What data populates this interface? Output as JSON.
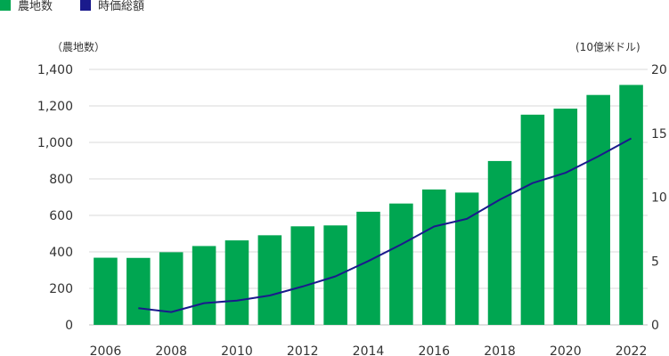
{
  "colors": {
    "bar": "#00a651",
    "line": "#1a1a8c",
    "grid": "#d9d9d9",
    "text": "#333333"
  },
  "legend": {
    "bar_label": "農地数",
    "line_label": "時価総額"
  },
  "axes": {
    "left_unit": "（農地数）",
    "right_unit": "(10億米ドル)"
  },
  "chart_data": {
    "type": "bar",
    "categories": [
      "2006",
      "2007",
      "2008",
      "2009",
      "2010",
      "2011",
      "2012",
      "2013",
      "2014",
      "2015",
      "2016",
      "2017",
      "2018",
      "2019",
      "2020",
      "2021",
      "2022"
    ],
    "x_tick_labels": [
      "2006",
      "2008",
      "2010",
      "2012",
      "2014",
      "2016",
      "2018",
      "2020",
      "2022"
    ],
    "series": [
      {
        "name": "農地数",
        "type": "bar",
        "axis": "left",
        "values": [
          368,
          367,
          398,
          432,
          463,
          491,
          540,
          545,
          620,
          665,
          742,
          725,
          898,
          1152,
          1185,
          1260,
          1315
        ]
      },
      {
        "name": "時価総額",
        "type": "line",
        "axis": "right",
        "x": [
          "2007",
          "2008",
          "2009",
          "2010",
          "2011",
          "2012",
          "2013",
          "2014",
          "2015",
          "2016",
          "2017",
          "2018",
          "2019",
          "2020",
          "2021",
          "2022"
        ],
        "values": [
          1.3,
          1.0,
          1.7,
          1.9,
          2.3,
          3.0,
          3.8,
          5.0,
          6.3,
          7.7,
          8.3,
          9.8,
          11.1,
          11.9,
          13.2,
          14.6
        ]
      }
    ],
    "ylim_left": [
      0,
      1400
    ],
    "yticks_left": [
      "0",
      "200",
      "400",
      "600",
      "800",
      "1,000",
      "1,200",
      "1,400"
    ],
    "ylim_right": [
      0,
      20
    ],
    "yticks_right": [
      "0",
      "5",
      "10",
      "15",
      "20"
    ],
    "grid": true,
    "legend_position": "top-left"
  }
}
